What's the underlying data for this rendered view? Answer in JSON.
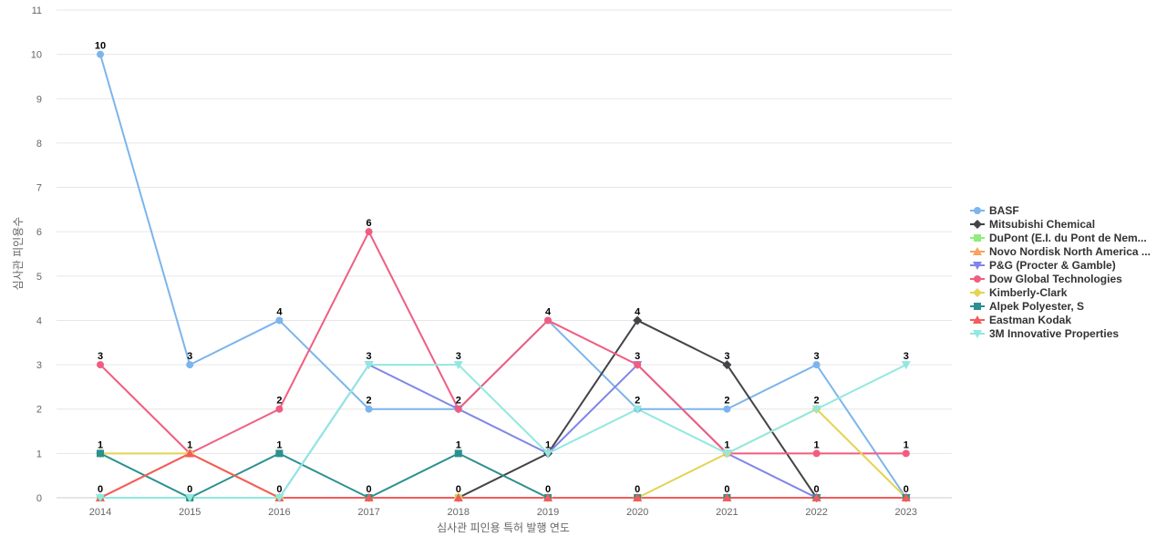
{
  "chart_data": {
    "type": "line",
    "title": "",
    "xlabel": "심사관 피인용 특허 발행 연도",
    "ylabel": "심사관 피인용수",
    "x": [
      2014,
      2015,
      2016,
      2017,
      2018,
      2019,
      2020,
      2021,
      2022,
      2023
    ],
    "ylim": [
      0,
      11
    ],
    "yticks": [
      0,
      1,
      2,
      3,
      4,
      5,
      6,
      7,
      8,
      9,
      10,
      11
    ],
    "grid": true,
    "legend_position": "right",
    "series": [
      {
        "name": "BASF",
        "color": "#7cb5ec",
        "marker": "circle",
        "values": [
          10,
          3,
          4,
          2,
          2,
          4,
          2,
          2,
          3,
          0
        ]
      },
      {
        "name": "Mitsubishi Chemical",
        "color": "#434348",
        "marker": "diamond",
        "values": [
          null,
          null,
          null,
          null,
          0,
          1,
          4,
          3,
          0,
          0
        ]
      },
      {
        "name": "DuPont (E.I. du Pont de Nem...",
        "color": "#90ed7d",
        "marker": "square",
        "values": [
          0,
          0,
          0,
          0,
          0,
          0,
          0,
          0,
          0,
          0
        ]
      },
      {
        "name": "Novo Nordisk North America ...",
        "color": "#f7a35c",
        "marker": "triangle",
        "values": [
          0,
          1,
          0,
          0,
          0,
          0,
          0,
          0,
          0,
          0
        ]
      },
      {
        "name": "P&G (Procter & Gamble)",
        "color": "#8085e9",
        "marker": "triangle-down",
        "values": [
          0,
          0,
          0,
          3,
          2,
          1,
          3,
          1,
          0,
          0
        ]
      },
      {
        "name": "Dow Global Technologies",
        "color": "#f15c80",
        "marker": "circle",
        "values": [
          3,
          1,
          2,
          6,
          2,
          4,
          3,
          1,
          1,
          1
        ]
      },
      {
        "name": "Kimberly-Clark",
        "color": "#e4d354",
        "marker": "diamond",
        "values": [
          1,
          1,
          0,
          0,
          0,
          0,
          0,
          1,
          2,
          0
        ]
      },
      {
        "name": "Alpek Polyester, S",
        "color": "#2b908f",
        "marker": "square",
        "values": [
          1,
          0,
          1,
          0,
          1,
          0,
          0,
          0,
          0,
          0
        ]
      },
      {
        "name": "Eastman Kodak",
        "color": "#f45b5b",
        "marker": "triangle",
        "values": [
          0,
          1,
          0,
          0,
          0,
          0,
          0,
          0,
          0,
          0
        ]
      },
      {
        "name": "3M Innovative Properties",
        "color": "#91e8e1",
        "marker": "triangle-down",
        "values": [
          0,
          0,
          0,
          3,
          3,
          1,
          2,
          1,
          2,
          3
        ]
      }
    ],
    "data_labels": [
      {
        "x": 2014,
        "series": "BASF",
        "text": "10"
      },
      {
        "x": 2014,
        "series": "Dow Global Technologies",
        "text": "3"
      },
      {
        "x": 2014,
        "series": "Alpek Polyester, S",
        "text": "1"
      },
      {
        "x": 2014,
        "series": "DuPont (E.I. du Pont de Nem...",
        "text": "0"
      },
      {
        "x": 2015,
        "series": "BASF",
        "text": "3"
      },
      {
        "x": 2015,
        "series": "Dow Global Technologies",
        "text": "1"
      },
      {
        "x": 2015,
        "series": "Alpek Polyester, S",
        "text": "0"
      },
      {
        "x": 2016,
        "series": "BASF",
        "text": "4"
      },
      {
        "x": 2016,
        "series": "Dow Global Technologies",
        "text": "2"
      },
      {
        "x": 2016,
        "series": "Alpek Polyester, S",
        "text": "1"
      },
      {
        "x": 2016,
        "series": "DuPont (E.I. du Pont de Nem...",
        "text": "0"
      },
      {
        "x": 2017,
        "series": "Dow Global Technologies",
        "text": "6"
      },
      {
        "x": 2017,
        "series": "3M Innovative Properties",
        "text": "3"
      },
      {
        "x": 2017,
        "series": "BASF",
        "text": "2"
      },
      {
        "x": 2017,
        "series": "DuPont (E.I. du Pont de Nem...",
        "text": "0"
      },
      {
        "x": 2018,
        "series": "3M Innovative Properties",
        "text": "3"
      },
      {
        "x": 2018,
        "series": "BASF",
        "text": "2"
      },
      {
        "x": 2018,
        "series": "Alpek Polyester, S",
        "text": "1"
      },
      {
        "x": 2018,
        "series": "DuPont (E.I. du Pont de Nem...",
        "text": "0"
      },
      {
        "x": 2019,
        "series": "BASF",
        "text": "4"
      },
      {
        "x": 2019,
        "series": "3M Innovative Properties",
        "text": "1"
      },
      {
        "x": 2019,
        "series": "DuPont (E.I. du Pont de Nem...",
        "text": "0"
      },
      {
        "x": 2020,
        "series": "Mitsubishi Chemical",
        "text": "4"
      },
      {
        "x": 2020,
        "series": "Dow Global Technologies",
        "text": "3"
      },
      {
        "x": 2020,
        "series": "BASF",
        "text": "2"
      },
      {
        "x": 2020,
        "series": "DuPont (E.I. du Pont de Nem...",
        "text": "0"
      },
      {
        "x": 2021,
        "series": "Mitsubishi Chemical",
        "text": "3"
      },
      {
        "x": 2021,
        "series": "BASF",
        "text": "2"
      },
      {
        "x": 2021,
        "series": "3M Innovative Properties",
        "text": "1"
      },
      {
        "x": 2021,
        "series": "DuPont (E.I. du Pont de Nem...",
        "text": "0"
      },
      {
        "x": 2022,
        "series": "BASF",
        "text": "3"
      },
      {
        "x": 2022,
        "series": "Kimberly-Clark",
        "text": "2"
      },
      {
        "x": 2022,
        "series": "Dow Global Technologies",
        "text": "1"
      },
      {
        "x": 2022,
        "series": "DuPont (E.I. du Pont de Nem...",
        "text": "0"
      },
      {
        "x": 2023,
        "series": "3M Innovative Properties",
        "text": "3"
      },
      {
        "x": 2023,
        "series": "Dow Global Technologies",
        "text": "1"
      },
      {
        "x": 2023,
        "series": "DuPont (E.I. du Pont de Nem...",
        "text": "0"
      }
    ]
  }
}
